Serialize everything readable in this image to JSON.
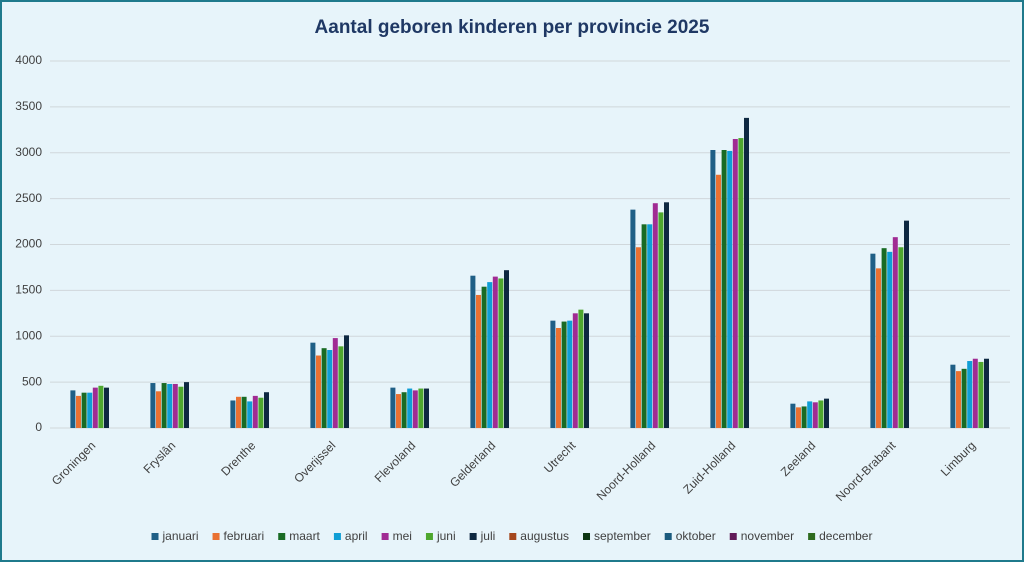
{
  "chart_data": {
    "type": "bar",
    "title": "Aantal geboren kinderen per provincie 2025",
    "categories": [
      "Groningen",
      "Fryslân",
      "Drenthe",
      "Overijssel",
      "Flevoland",
      "Gelderland",
      "Utrecht",
      "Noord-Holland",
      "Zuid-Holland",
      "Zeeland",
      "Noord-Brabant",
      "Limburg"
    ],
    "series": [
      {
        "name": "januari",
        "color": "#1f5f86",
        "values": [
          410,
          490,
          300,
          930,
          440,
          1660,
          1170,
          2380,
          3030,
          265,
          1900,
          690
        ]
      },
      {
        "name": "februari",
        "color": "#e97132",
        "values": [
          350,
          400,
          340,
          790,
          370,
          1450,
          1090,
          1970,
          2760,
          225,
          1740,
          620
        ]
      },
      {
        "name": "maart",
        "color": "#196b24",
        "values": [
          385,
          490,
          340,
          870,
          390,
          1540,
          1160,
          2220,
          3030,
          235,
          1960,
          645
        ]
      },
      {
        "name": "april",
        "color": "#0f9ed5",
        "values": [
          385,
          480,
          290,
          850,
          430,
          1590,
          1170,
          2220,
          3020,
          290,
          1920,
          730
        ]
      },
      {
        "name": "mei",
        "color": "#a02b93",
        "values": [
          440,
          480,
          350,
          980,
          410,
          1650,
          1250,
          2450,
          3150,
          280,
          2080,
          755
        ]
      },
      {
        "name": "juni",
        "color": "#4ea72e",
        "values": [
          460,
          450,
          330,
          890,
          430,
          1630,
          1290,
          2350,
          3160,
          300,
          1970,
          720
        ]
      },
      {
        "name": "juli",
        "color": "#0e2841",
        "values": [
          440,
          500,
          390,
          1010,
          430,
          1720,
          1250,
          2460,
          3380,
          320,
          2260,
          755
        ]
      },
      {
        "name": "augustus",
        "color": "#a5471d",
        "values": [
          null,
          null,
          null,
          null,
          null,
          null,
          null,
          null,
          null,
          null,
          null,
          null
        ]
      },
      {
        "name": "september",
        "color": "#0d3512",
        "values": [
          null,
          null,
          null,
          null,
          null,
          null,
          null,
          null,
          null,
          null,
          null,
          null
        ]
      },
      {
        "name": "oktober",
        "color": "#1b5b7e",
        "values": [
          null,
          null,
          null,
          null,
          null,
          null,
          null,
          null,
          null,
          null,
          null,
          null
        ]
      },
      {
        "name": "november",
        "color": "#601a58",
        "values": [
          null,
          null,
          null,
          null,
          null,
          null,
          null,
          null,
          null,
          null,
          null,
          null
        ]
      },
      {
        "name": "december",
        "color": "#2e6b1e",
        "values": [
          null,
          null,
          null,
          null,
          null,
          null,
          null,
          null,
          null,
          null,
          null,
          null
        ]
      }
    ],
    "ylim": [
      0,
      4000
    ],
    "yticks": [
      0,
      500,
      1000,
      1500,
      2000,
      2500,
      3000,
      3500,
      4000
    ],
    "grid": true
  }
}
